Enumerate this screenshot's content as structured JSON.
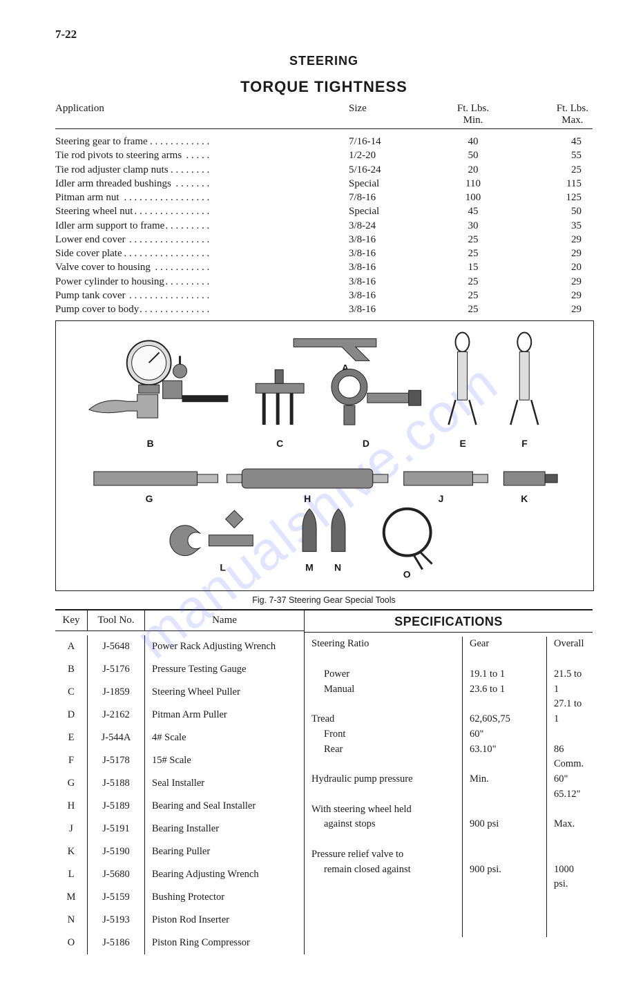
{
  "page_number": "7-22",
  "watermark_text": "manualshive.com",
  "headings": {
    "steering": "STEERING",
    "torque": "TORQUE TIGHTNESS"
  },
  "torque_table": {
    "headers": {
      "application": "Application",
      "size": "Size",
      "min_line1": "Ft. Lbs.",
      "min_line2": "Min.",
      "max_line1": "Ft. Lbs.",
      "max_line2": "Max."
    },
    "rows": [
      {
        "application": "Steering gear to frame",
        "size": "7/16-14",
        "min": "40",
        "max": "45"
      },
      {
        "application": "Tie rod pivots to steering arms",
        "size": "1/2-20",
        "min": "50",
        "max": "55"
      },
      {
        "application": "Tie rod adjuster clamp nuts",
        "size": "5/16-24",
        "min": "20",
        "max": "25"
      },
      {
        "application": "Idler arm threaded bushings",
        "size": "Special",
        "min": "110",
        "max": "115"
      },
      {
        "application": "Pitman arm nut",
        "size": "7/8-16",
        "min": "100",
        "max": "125"
      },
      {
        "application": "Steering wheel nut",
        "size": "Special",
        "min": "45",
        "max": "50"
      },
      {
        "application": "Idler arm support to frame",
        "size": "3/8-24",
        "min": "30",
        "max": "35"
      },
      {
        "application": "Lower end cover",
        "size": "3/8-16",
        "min": "25",
        "max": "29"
      },
      {
        "application": "Side cover plate",
        "size": "3/8-16",
        "min": "25",
        "max": "29"
      },
      {
        "application": "Valve cover to housing",
        "size": "3/8-16",
        "min": "15",
        "max": "20"
      },
      {
        "application": "Power cylinder to housing",
        "size": "3/8-16",
        "min": "25",
        "max": "29"
      },
      {
        "application": "Pump tank cover",
        "size": "3/8-16",
        "min": "25",
        "max": "29"
      },
      {
        "application": "Pump cover to body",
        "size": "3/8-16",
        "min": "25",
        "max": "29"
      }
    ]
  },
  "figure": {
    "caption": "Fig. 7-37   Steering Gear Special Tools",
    "letters": {
      "A": "A",
      "B": "B",
      "C": "C",
      "D": "D",
      "E": "E",
      "F": "F",
      "G": "G",
      "H": "H",
      "J": "J",
      "K": "K",
      "L": "L",
      "M": "M",
      "N": "N",
      "O": "O"
    }
  },
  "tools_table": {
    "headers": {
      "key": "Key",
      "tool": "Tool No.",
      "name": "Name"
    },
    "rows": [
      {
        "key": "A",
        "tool": "J-5648",
        "name": "Power Rack Adjusting Wrench"
      },
      {
        "key": "B",
        "tool": "J-5176",
        "name": "Pressure Testing Gauge"
      },
      {
        "key": "C",
        "tool": "J-1859",
        "name": "Steering Wheel Puller"
      },
      {
        "key": "D",
        "tool": "J-2162",
        "name": "Pitman Arm Puller"
      },
      {
        "key": "E",
        "tool": "J-544A",
        "name": "4# Scale"
      },
      {
        "key": "F",
        "tool": "J-5178",
        "name": "15# Scale"
      },
      {
        "key": "G",
        "tool": "J-5188",
        "name": "Seal Installer"
      },
      {
        "key": "H",
        "tool": "J-5189",
        "name": "Bearing and Seal Installer"
      },
      {
        "key": "J",
        "tool": "J-5191",
        "name": "Bearing Installer"
      },
      {
        "key": "K",
        "tool": "J-5190",
        "name": "Bearing Puller"
      },
      {
        "key": "L",
        "tool": "J-5680",
        "name": "Bearing Adjusting Wrench"
      },
      {
        "key": "M",
        "tool": "J-5159",
        "name": "Bushing Protector"
      },
      {
        "key": "N",
        "tool": "J-5193",
        "name": "Piston Rod Inserter"
      },
      {
        "key": "O",
        "tool": "J-5186",
        "name": "Piston Ring Compressor"
      }
    ]
  },
  "specs": {
    "heading": "SPECIFICATIONS",
    "rows": [
      {
        "label": "Steering Ratio",
        "c1": "Gear",
        "c2": "Overall"
      },
      {
        "label": "",
        "c1": "",
        "c2": ""
      },
      {
        "label": "Power",
        "c1": "19.1 to 1",
        "c2": "21.5 to 1",
        "indent": true
      },
      {
        "label": "Manual",
        "c1": "23.6 to 1",
        "c2": "27.1 to 1",
        "indent": true
      },
      {
        "label": "",
        "c1": "",
        "c2": ""
      },
      {
        "label": "Tread",
        "c1": "62,60S,75",
        "c2": "86 Comm."
      },
      {
        "label": "Front",
        "c1": "60\"",
        "c2": "60\"",
        "indent": true
      },
      {
        "label": "Rear",
        "c1": "63.10\"",
        "c2": "65.12\"",
        "indent": true
      },
      {
        "label": "",
        "c1": "",
        "c2": ""
      },
      {
        "label": "Hydraulic pump pressure",
        "c1": "Min.",
        "c2": "Max."
      },
      {
        "label": "",
        "c1": "",
        "c2": ""
      },
      {
        "label": "With steering wheel held",
        "c1": "",
        "c2": ""
      },
      {
        "label": "against stops",
        "c1": "900 psi",
        "c2": "1000 psi.",
        "indent": true
      },
      {
        "label": "",
        "c1": "",
        "c2": ""
      },
      {
        "label": "Pressure relief valve to",
        "c1": "",
        "c2": ""
      },
      {
        "label": "remain closed against",
        "c1": "900 psi.",
        "c2": "",
        "indent": true
      }
    ]
  },
  "colors": {
    "text": "#1a1a1a",
    "border": "#1a1a1a",
    "background": "#ffffff",
    "watermark": "#5a6cff"
  }
}
